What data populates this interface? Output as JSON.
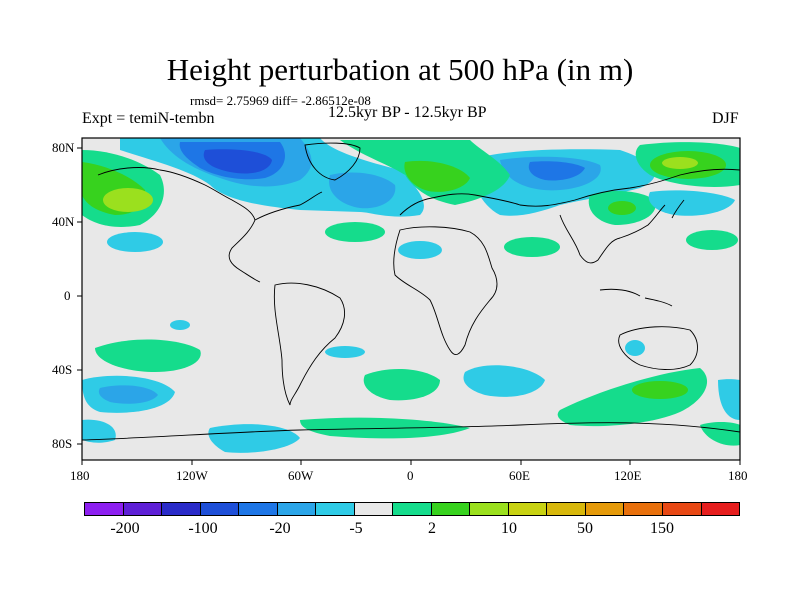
{
  "title": "Height perturbation at 500 hPa (in m)",
  "stats": "rmsd= 2.75969 diff= -2.86512e-08",
  "expt_label": "Expt = temiN-tembn",
  "subtitle": "12.5kyr BP - 12.5kyr BP",
  "season": "DJF",
  "lat_ticks": [
    "80N",
    "40N",
    "0",
    "40S",
    "80S"
  ],
  "lon_ticks": [
    "180",
    "120W",
    "60W",
    "0",
    "60E",
    "120E",
    "180"
  ],
  "colorbar": {
    "colors": [
      "#8d1ff0",
      "#5e1fd6",
      "#2a2bc9",
      "#1e4fd8",
      "#1e76e6",
      "#2ba5e8",
      "#2fcbe6",
      "#e8e8e8",
      "#15dc8c",
      "#37d21e",
      "#9be01e",
      "#c8d212",
      "#d8b80c",
      "#e59a0a",
      "#e8700c",
      "#e84814",
      "#e61e1e"
    ],
    "labels": [
      "-200",
      "-100",
      "-20",
      "-5",
      "2",
      "10",
      "50",
      "150"
    ]
  },
  "icons": {
    "map": "world-map"
  }
}
